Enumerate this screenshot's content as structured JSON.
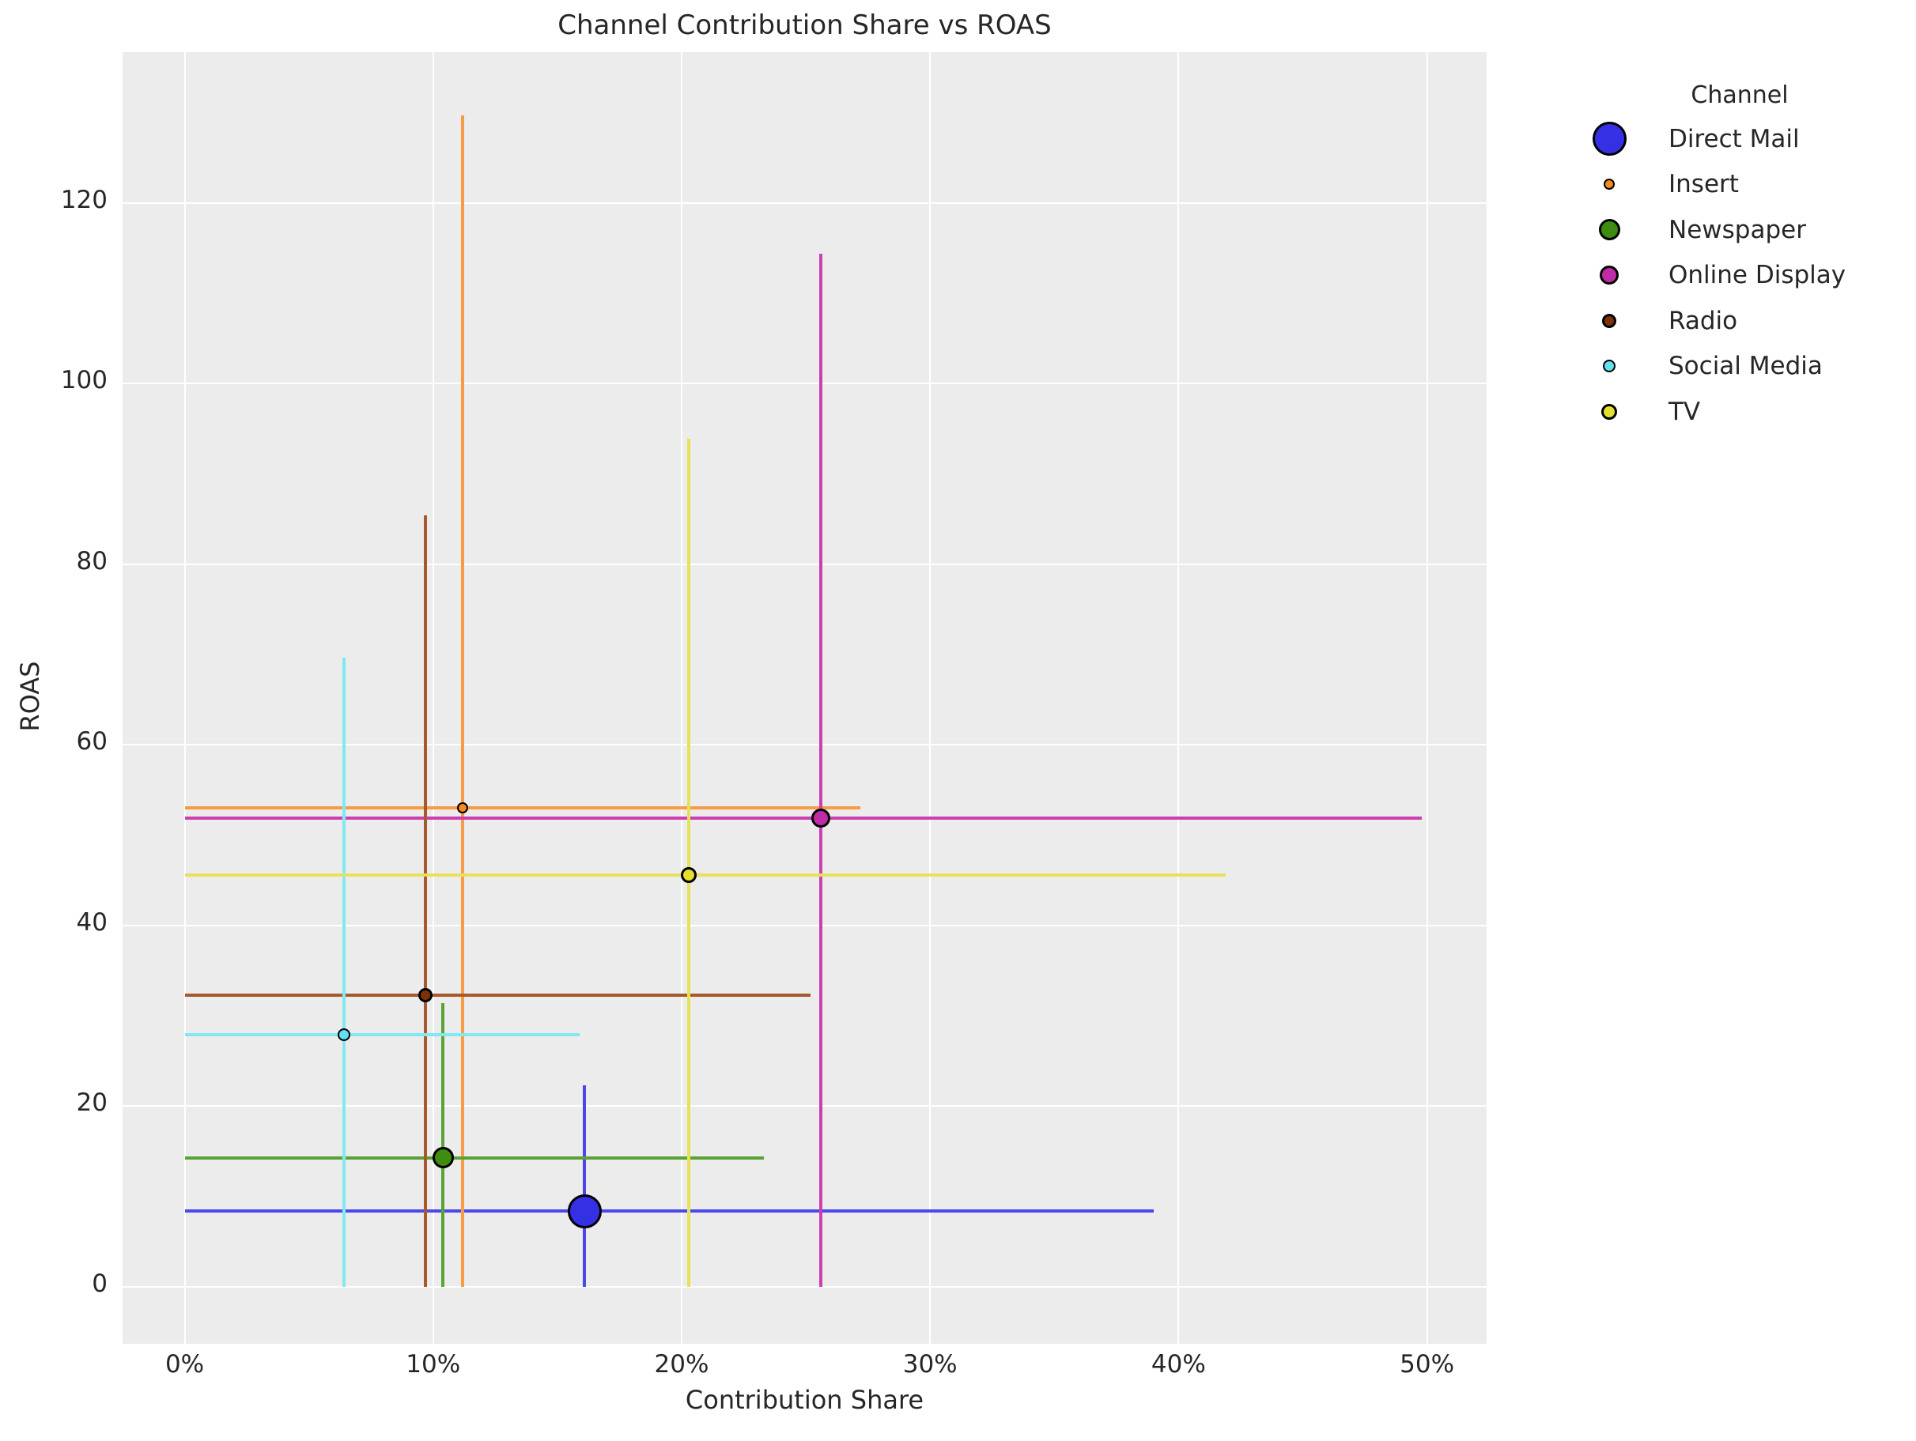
{
  "chart_data": {
    "type": "scatter",
    "title": "Channel Contribution Share vs ROAS",
    "xlabel": "Contribution Share",
    "ylabel": "ROAS",
    "legend_title": "Channel",
    "plot_background": "#ECECEC",
    "grid": true,
    "grid_color": "#ffffff",
    "text_color": "#262626",
    "xlim": [
      -2.5,
      52.4
    ],
    "ylim": [
      -6.3,
      136.7
    ],
    "x_ticks": [
      0,
      10,
      20,
      30,
      40,
      50
    ],
    "x_tick_labels": [
      "0%",
      "10%",
      "20%",
      "30%",
      "40%",
      "50%"
    ],
    "y_ticks": [
      0,
      20,
      40,
      60,
      80,
      100,
      120
    ],
    "y_tick_labels": [
      "0",
      "20",
      "40",
      "60",
      "80",
      "100",
      "120"
    ],
    "legend_position": "upper right outside",
    "series": [
      {
        "name": "Direct Mail",
        "x": 16.1,
        "y": 8.4,
        "x_bar": [
          0,
          39.0
        ],
        "y_bar": [
          0,
          22.3
        ],
        "marker_px": 43,
        "color": "#3431E4",
        "line_color": "#4B47E8"
      },
      {
        "name": "Insert",
        "x": 11.2,
        "y": 53.0,
        "x_bar": [
          0,
          27.2
        ],
        "y_bar": [
          0,
          129.7
        ],
        "marker_px": 14,
        "color": "#F68A1E",
        "line_color": "#F79B45"
      },
      {
        "name": "Newspaper",
        "x": 10.4,
        "y": 14.3,
        "x_bar": [
          0,
          23.3
        ],
        "y_bar": [
          0,
          31.4
        ],
        "marker_px": 27,
        "color": "#3E8D10",
        "line_color": "#5AA233"
      },
      {
        "name": "Online Display",
        "x": 25.6,
        "y": 51.9,
        "x_bar": [
          0,
          49.8
        ],
        "y_bar": [
          0,
          114.4
        ],
        "marker_px": 24,
        "color": "#C02BA6",
        "line_color": "#CC3FAE"
      },
      {
        "name": "Radio",
        "x": 9.7,
        "y": 32.3,
        "x_bar": [
          0,
          25.2
        ],
        "y_bar": [
          0,
          85.4
        ],
        "marker_px": 18,
        "color": "#7E3208",
        "line_color": "#A5592D"
      },
      {
        "name": "Social Media",
        "x": 6.4,
        "y": 27.9,
        "x_bar": [
          0,
          15.9
        ],
        "y_bar": [
          0,
          69.7
        ],
        "marker_px": 16,
        "color": "#62DFF0",
        "line_color": "#82E8F4"
      },
      {
        "name": "TV",
        "x": 20.3,
        "y": 45.6,
        "x_bar": [
          0,
          41.9
        ],
        "y_bar": [
          0,
          93.9
        ],
        "marker_px": 20,
        "color": "#E4DE30",
        "line_color": "#E7E259"
      }
    ]
  }
}
